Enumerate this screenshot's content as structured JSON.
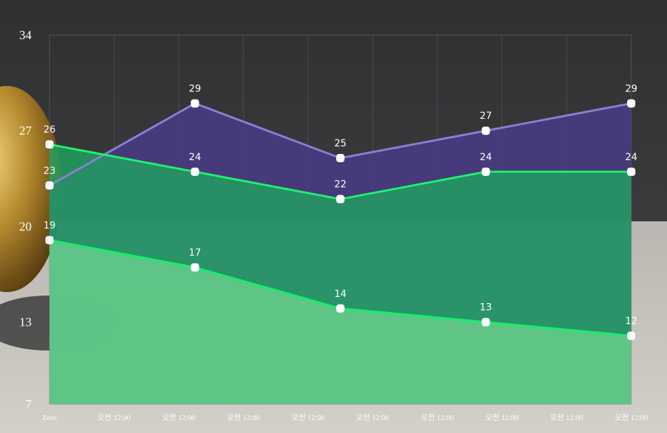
{
  "colors": {
    "series_top_line": "#8b7fd6",
    "series_top_fill": "#4a3b86",
    "series_mid_line": "#1df56d",
    "series_mid_fill": "#1fa460",
    "series_bottom_line": "#12f06a",
    "series_bottom_fill": "#7fe39a",
    "marker": "#ffffff"
  },
  "chart_data": {
    "type": "area",
    "title": "",
    "xlabel": "",
    "ylabel": "",
    "ylim": [
      7,
      34
    ],
    "yticks": [
      "34",
      "27",
      "20",
      "13",
      "7"
    ],
    "ytick_values": [
      34,
      27,
      20,
      13,
      7
    ],
    "xticks": [
      "Zero",
      "오전 12:00",
      "오전 12:00",
      "오전 12:00",
      "오전 12:00",
      "오전 12:00",
      "오전 12:00",
      "오전 12:00",
      "오전 12:00",
      "오전 12:00"
    ],
    "grid": true,
    "legend": "none",
    "series": [
      {
        "values": [
          23,
          29,
          25,
          27,
          29
        ],
        "labels": [
          "23",
          "29",
          "25",
          "27",
          "29"
        ]
      },
      {
        "values": [
          26,
          24,
          22,
          24,
          24
        ],
        "labels": [
          "26",
          "24",
          "22",
          "24",
          "24"
        ]
      },
      {
        "values": [
          19,
          17,
          14,
          13,
          12
        ],
        "labels": [
          "19",
          "17",
          "14",
          "13",
          "12"
        ]
      }
    ]
  }
}
